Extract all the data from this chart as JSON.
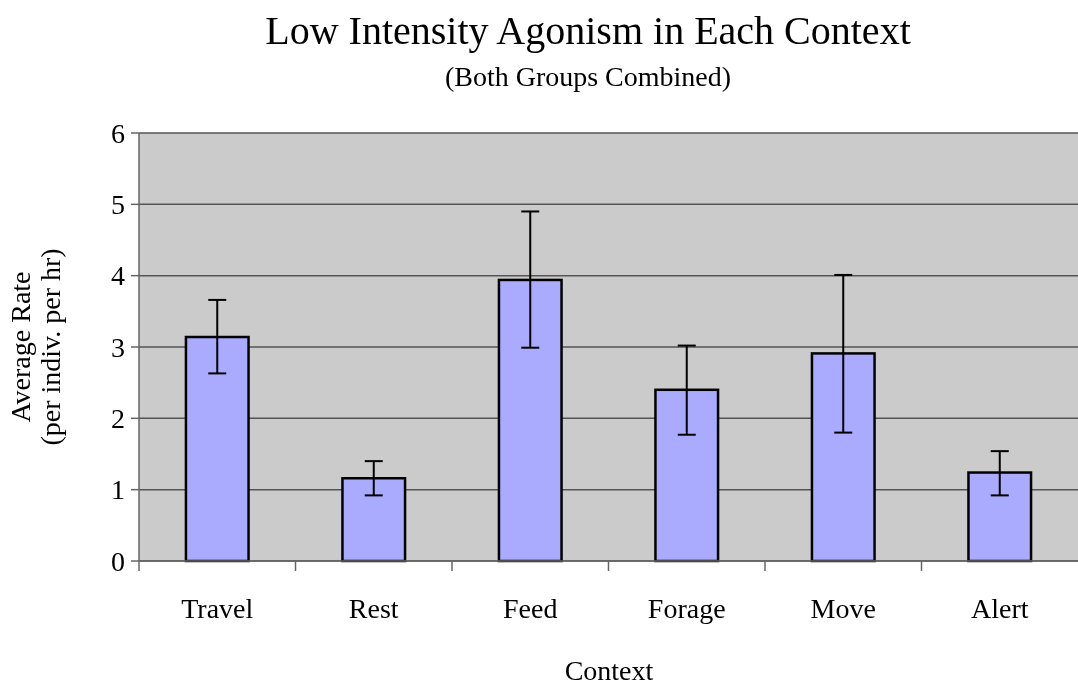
{
  "chart_data": {
    "type": "bar",
    "title": "Low Intensity Agonism in Each Context",
    "subtitle": "(Both Groups Combined)",
    "xlabel": "Context",
    "ylabel": "Average Rate\n(per indiv. per hr)",
    "categories": [
      "Travel",
      "Rest",
      "Feed",
      "Forage",
      "Move",
      "Alert"
    ],
    "values": [
      3.14,
      1.16,
      3.94,
      2.4,
      2.91,
      1.24
    ],
    "errors": [
      [
        2.63,
        3.66
      ],
      [
        0.92,
        1.4
      ],
      [
        2.99,
        4.9
      ],
      [
        1.77,
        3.02
      ],
      [
        1.8,
        4.01
      ],
      [
        0.92,
        1.54
      ]
    ],
    "color": "#aaaaff",
    "ylim": [
      0,
      6
    ],
    "yticks": [
      0,
      1,
      2,
      3,
      4,
      5,
      6
    ],
    "grid": "y"
  }
}
